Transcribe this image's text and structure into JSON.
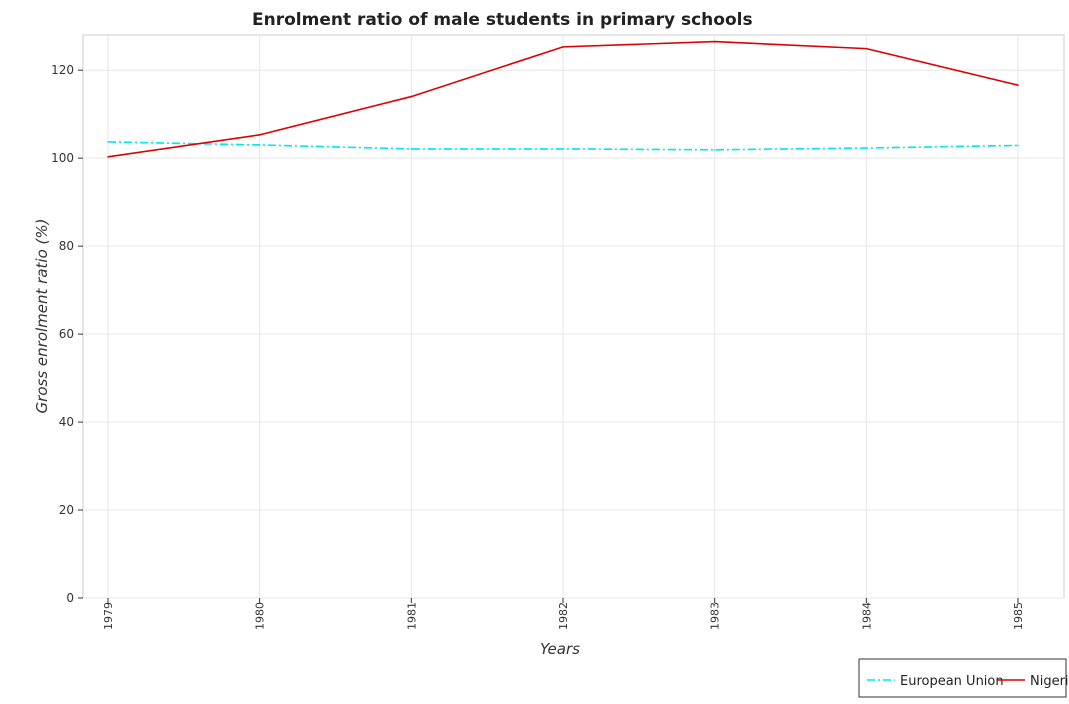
{
  "chart_data": {
    "type": "line",
    "title": "Enrolment ratio of male students in primary schools",
    "xlabel": "Years",
    "ylabel": "Gross enrolment ratio (%)",
    "categories": [
      "1979",
      "1980",
      "1981",
      "1982",
      "1983",
      "1984",
      "1985"
    ],
    "ylim": [
      0,
      128
    ],
    "yticks": [
      0,
      20,
      40,
      60,
      80,
      100,
      120
    ],
    "grid": true,
    "legend_position": "bottom-right",
    "series": [
      {
        "name": "European Union",
        "color": "#00e5ee",
        "dash": "dashdot",
        "values": [
          103.7,
          103.0,
          102.1,
          102.1,
          101.9,
          102.3,
          102.9
        ]
      },
      {
        "name": "Nigeria",
        "color": "#dd0000",
        "dash": "solid",
        "values": [
          100.3,
          105.3,
          114.0,
          125.3,
          126.5,
          124.9,
          116.6
        ]
      }
    ]
  }
}
